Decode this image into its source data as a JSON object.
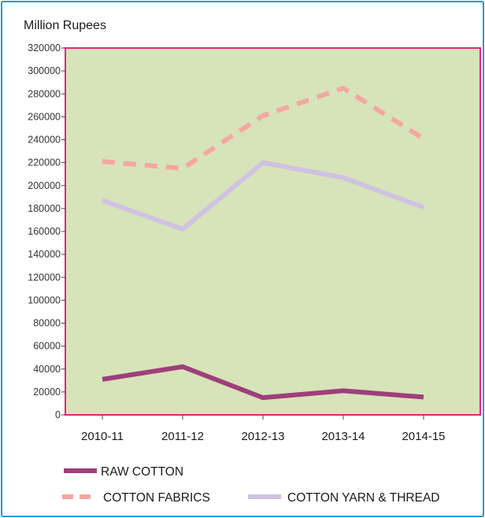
{
  "chart_data": {
    "type": "line",
    "ylabel": "Million Rupees",
    "categories": [
      "2010-11",
      "2011-12",
      "2012-13",
      "2013-14",
      "2014-15"
    ],
    "ylim": [
      0,
      320000
    ],
    "yticks": [
      0,
      20000,
      40000,
      60000,
      80000,
      100000,
      120000,
      140000,
      160000,
      180000,
      200000,
      220000,
      240000,
      260000,
      280000,
      300000,
      320000
    ],
    "grid": false,
    "plot_background": "#d7e3b9",
    "plot_border_color": "#e0267f",
    "legend_position": "bottom",
    "series": [
      {
        "name": "RAW COTTON",
        "values": [
          31000,
          42000,
          15000,
          21000,
          15500
        ],
        "color": "#9e3f7a",
        "style": "solid"
      },
      {
        "name": "COTTON FABRICS",
        "values": [
          221000,
          215000,
          261000,
          285000,
          241000
        ],
        "color": "#f4a7a0",
        "style": "dashed"
      },
      {
        "name": "COTTON YARN & THREAD",
        "values": [
          187000,
          162000,
          220000,
          207000,
          181000
        ],
        "color": "#cfc2e2",
        "style": "solid"
      }
    ]
  }
}
